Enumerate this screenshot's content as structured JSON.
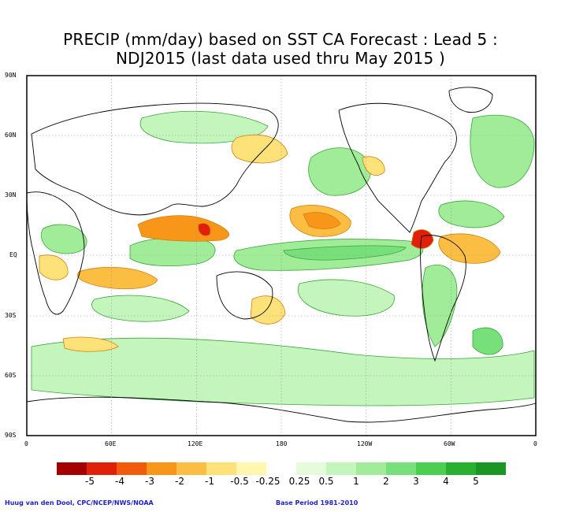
{
  "title": {
    "line1": "PRECIP (mm/day) based on SST CA Forecast : Lead 5 :",
    "line2": "NDJ2015 (last data used thru May 2015 )"
  },
  "axes": {
    "y_labels": [
      "90N",
      "60N",
      "30N",
      "EQ",
      "30S",
      "60S",
      "90S"
    ],
    "x_labels": [
      "0",
      "60E",
      "120E",
      "180",
      "120W",
      "60W",
      "0"
    ]
  },
  "colorbar": {
    "labels": [
      "-5",
      "-4",
      "-3",
      "-2",
      "-1",
      "-0.5",
      "-0.25",
      "0.25",
      "0.5",
      "1",
      "2",
      "3",
      "4",
      "5"
    ],
    "colors": [
      "#a50000",
      "#e0200a",
      "#f25a0c",
      "#f8961a",
      "#fbbe42",
      "#fde27a",
      "#fff6b0",
      "#ffffff",
      "#e5fbdc",
      "#c4f5bc",
      "#a0ec98",
      "#78e07a",
      "#4cce50",
      "#28b030",
      "#1a9624"
    ]
  },
  "footer": {
    "left": "Huug van den Dool, CPC/NCEP/NWS/NOAA",
    "right": "Base Period 1981-2010"
  },
  "map_colors": {
    "wet_light": "#c4f5bc",
    "wet_mid": "#a0ec98",
    "wet_strong": "#78e07a",
    "dry_light": "#fde27a",
    "dry_mid": "#fbbe42",
    "dry_strong": "#f8961a",
    "dry_extreme": "#e0200a"
  }
}
